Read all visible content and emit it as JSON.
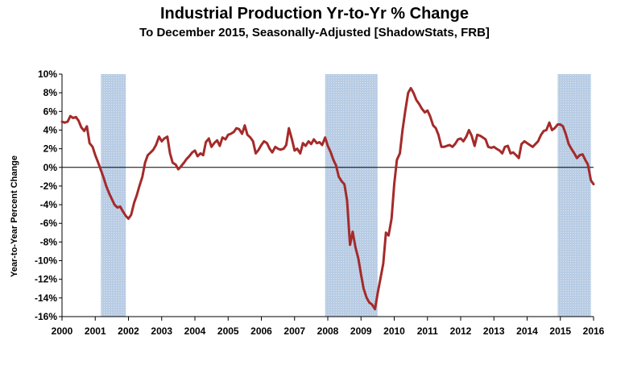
{
  "chart_data": {
    "type": "line",
    "title": "Industrial Production Yr-to-Yr % Change",
    "subtitle": "To December 2015, Seasonally-Adjusted [ShadowStats, FRB]",
    "xlabel": "",
    "ylabel": "Year-to-Year Percent Change",
    "xlim": [
      2000,
      2016
    ],
    "ylim": [
      -16,
      10
    ],
    "x_ticks": [
      "2000",
      "2001",
      "2002",
      "2003",
      "2004",
      "2005",
      "2006",
      "2007",
      "2008",
      "2009",
      "2010",
      "2011",
      "2012",
      "2013",
      "2014",
      "2015",
      "2016"
    ],
    "y_ticks": [
      "10%",
      "8%",
      "6%",
      "4%",
      "2%",
      "0%",
      "-2%",
      "-4%",
      "-6%",
      "-8%",
      "-10%",
      "-12%",
      "-14%",
      "-16%"
    ],
    "y_tick_values": [
      10,
      8,
      6,
      4,
      2,
      0,
      -2,
      -4,
      -6,
      -8,
      -10,
      -12,
      -14,
      -16
    ],
    "x_tick_values": [
      2000,
      2001,
      2002,
      2003,
      2004,
      2005,
      2006,
      2007,
      2008,
      2009,
      2010,
      2011,
      2012,
      2013,
      2014,
      2015,
      2016
    ],
    "recession_shading": [
      [
        2001.17,
        2001.92
      ],
      [
        2007.92,
        2009.5
      ],
      [
        2014.92,
        2015.92
      ]
    ],
    "grid": false,
    "zero_line": true,
    "colors": {
      "line": "#a52a2a",
      "shading": "#b8cce4",
      "axis": "#000000"
    },
    "series": [
      {
        "values": [
          [
            2000.0,
            4.9
          ],
          [
            2000.08,
            4.8
          ],
          [
            2000.17,
            4.9
          ],
          [
            2000.25,
            5.5
          ],
          [
            2000.33,
            5.3
          ],
          [
            2000.42,
            5.4
          ],
          [
            2000.5,
            5.0
          ],
          [
            2000.58,
            4.3
          ],
          [
            2000.67,
            3.9
          ],
          [
            2000.75,
            4.4
          ],
          [
            2000.83,
            2.6
          ],
          [
            2000.92,
            2.2
          ],
          [
            2001.0,
            1.3
          ],
          [
            2001.08,
            0.6
          ],
          [
            2001.17,
            -0.3
          ],
          [
            2001.25,
            -1.1
          ],
          [
            2001.33,
            -2.0
          ],
          [
            2001.42,
            -2.8
          ],
          [
            2001.5,
            -3.4
          ],
          [
            2001.58,
            -4.0
          ],
          [
            2001.67,
            -4.3
          ],
          [
            2001.75,
            -4.2
          ],
          [
            2001.83,
            -4.7
          ],
          [
            2001.92,
            -5.2
          ],
          [
            2002.0,
            -5.5
          ],
          [
            2002.08,
            -5.1
          ],
          [
            2002.17,
            -3.8
          ],
          [
            2002.25,
            -3.0
          ],
          [
            2002.33,
            -2.0
          ],
          [
            2002.42,
            -1.0
          ],
          [
            2002.5,
            0.5
          ],
          [
            2002.58,
            1.3
          ],
          [
            2002.67,
            1.6
          ],
          [
            2002.75,
            1.9
          ],
          [
            2002.83,
            2.4
          ],
          [
            2002.92,
            3.3
          ],
          [
            2003.0,
            2.8
          ],
          [
            2003.08,
            3.1
          ],
          [
            2003.17,
            3.3
          ],
          [
            2003.25,
            1.5
          ],
          [
            2003.33,
            0.5
          ],
          [
            2003.42,
            0.3
          ],
          [
            2003.5,
            -0.2
          ],
          [
            2003.58,
            0.1
          ],
          [
            2003.67,
            0.5
          ],
          [
            2003.75,
            0.9
          ],
          [
            2003.83,
            1.2
          ],
          [
            2003.92,
            1.6
          ],
          [
            2004.0,
            1.8
          ],
          [
            2004.08,
            1.2
          ],
          [
            2004.17,
            1.5
          ],
          [
            2004.25,
            1.3
          ],
          [
            2004.33,
            2.7
          ],
          [
            2004.42,
            3.1
          ],
          [
            2004.5,
            2.2
          ],
          [
            2004.58,
            2.6
          ],
          [
            2004.67,
            2.9
          ],
          [
            2004.75,
            2.3
          ],
          [
            2004.83,
            3.2
          ],
          [
            2004.92,
            3.0
          ],
          [
            2005.0,
            3.5
          ],
          [
            2005.08,
            3.6
          ],
          [
            2005.17,
            3.8
          ],
          [
            2005.25,
            4.2
          ],
          [
            2005.33,
            4.1
          ],
          [
            2005.42,
            3.6
          ],
          [
            2005.5,
            4.5
          ],
          [
            2005.58,
            3.5
          ],
          [
            2005.67,
            3.2
          ],
          [
            2005.75,
            2.8
          ],
          [
            2005.83,
            1.5
          ],
          [
            2005.92,
            1.9
          ],
          [
            2006.0,
            2.4
          ],
          [
            2006.08,
            2.8
          ],
          [
            2006.17,
            2.6
          ],
          [
            2006.25,
            2.0
          ],
          [
            2006.33,
            1.6
          ],
          [
            2006.42,
            2.2
          ],
          [
            2006.5,
            2.0
          ],
          [
            2006.58,
            1.9
          ],
          [
            2006.67,
            2.0
          ],
          [
            2006.75,
            2.4
          ],
          [
            2006.83,
            4.2
          ],
          [
            2006.92,
            3.0
          ],
          [
            2007.0,
            1.8
          ],
          [
            2007.08,
            2.0
          ],
          [
            2007.17,
            1.5
          ],
          [
            2007.25,
            2.6
          ],
          [
            2007.33,
            2.3
          ],
          [
            2007.42,
            2.8
          ],
          [
            2007.5,
            2.5
          ],
          [
            2007.58,
            3.0
          ],
          [
            2007.67,
            2.6
          ],
          [
            2007.75,
            2.7
          ],
          [
            2007.83,
            2.4
          ],
          [
            2007.92,
            3.2
          ],
          [
            2008.0,
            2.3
          ],
          [
            2008.08,
            1.7
          ],
          [
            2008.17,
            0.8
          ],
          [
            2008.25,
            0.2
          ],
          [
            2008.33,
            -1.0
          ],
          [
            2008.42,
            -1.5
          ],
          [
            2008.5,
            -1.8
          ],
          [
            2008.58,
            -3.5
          ],
          [
            2008.67,
            -8.3
          ],
          [
            2008.75,
            -6.9
          ],
          [
            2008.83,
            -8.5
          ],
          [
            2008.92,
            -9.8
          ],
          [
            2009.0,
            -11.5
          ],
          [
            2009.08,
            -13.0
          ],
          [
            2009.17,
            -14.0
          ],
          [
            2009.25,
            -14.5
          ],
          [
            2009.33,
            -14.7
          ],
          [
            2009.42,
            -15.2
          ],
          [
            2009.5,
            -13.5
          ],
          [
            2009.58,
            -12.0
          ],
          [
            2009.67,
            -10.3
          ],
          [
            2009.75,
            -7.0
          ],
          [
            2009.83,
            -7.3
          ],
          [
            2009.92,
            -5.5
          ],
          [
            2010.0,
            -1.8
          ],
          [
            2010.08,
            0.8
          ],
          [
            2010.17,
            1.5
          ],
          [
            2010.25,
            4.0
          ],
          [
            2010.33,
            6.0
          ],
          [
            2010.42,
            8.0
          ],
          [
            2010.5,
            8.5
          ],
          [
            2010.58,
            8.0
          ],
          [
            2010.67,
            7.2
          ],
          [
            2010.75,
            6.8
          ],
          [
            2010.83,
            6.3
          ],
          [
            2010.92,
            5.9
          ],
          [
            2011.0,
            6.1
          ],
          [
            2011.08,
            5.5
          ],
          [
            2011.17,
            4.5
          ],
          [
            2011.25,
            4.2
          ],
          [
            2011.33,
            3.5
          ],
          [
            2011.42,
            2.2
          ],
          [
            2011.5,
            2.2
          ],
          [
            2011.58,
            2.3
          ],
          [
            2011.67,
            2.4
          ],
          [
            2011.75,
            2.2
          ],
          [
            2011.83,
            2.5
          ],
          [
            2011.92,
            3.0
          ],
          [
            2012.0,
            3.1
          ],
          [
            2012.08,
            2.8
          ],
          [
            2012.17,
            3.3
          ],
          [
            2012.25,
            4.0
          ],
          [
            2012.33,
            3.4
          ],
          [
            2012.42,
            2.3
          ],
          [
            2012.5,
            3.5
          ],
          [
            2012.58,
            3.4
          ],
          [
            2012.67,
            3.2
          ],
          [
            2012.75,
            3.0
          ],
          [
            2012.83,
            2.2
          ],
          [
            2012.92,
            2.1
          ],
          [
            2013.0,
            2.2
          ],
          [
            2013.08,
            2.0
          ],
          [
            2013.17,
            1.8
          ],
          [
            2013.25,
            1.5
          ],
          [
            2013.33,
            2.2
          ],
          [
            2013.42,
            2.3
          ],
          [
            2013.5,
            1.5
          ],
          [
            2013.58,
            1.6
          ],
          [
            2013.67,
            1.3
          ],
          [
            2013.75,
            1.0
          ],
          [
            2013.83,
            2.5
          ],
          [
            2013.92,
            2.8
          ],
          [
            2014.0,
            2.6
          ],
          [
            2014.08,
            2.4
          ],
          [
            2014.17,
            2.2
          ],
          [
            2014.25,
            2.5
          ],
          [
            2014.33,
            2.8
          ],
          [
            2014.42,
            3.5
          ],
          [
            2014.5,
            3.9
          ],
          [
            2014.58,
            4.0
          ],
          [
            2014.67,
            4.8
          ],
          [
            2014.75,
            4.0
          ],
          [
            2014.83,
            4.2
          ],
          [
            2014.92,
            4.6
          ],
          [
            2015.0,
            4.6
          ],
          [
            2015.08,
            4.4
          ],
          [
            2015.17,
            3.5
          ],
          [
            2015.25,
            2.5
          ],
          [
            2015.33,
            2.0
          ],
          [
            2015.42,
            1.5
          ],
          [
            2015.5,
            1.0
          ],
          [
            2015.58,
            1.3
          ],
          [
            2015.67,
            1.4
          ],
          [
            2015.75,
            0.8
          ],
          [
            2015.83,
            0.3
          ],
          [
            2015.92,
            -1.4
          ],
          [
            2016.0,
            -1.8
          ]
        ]
      }
    ]
  }
}
